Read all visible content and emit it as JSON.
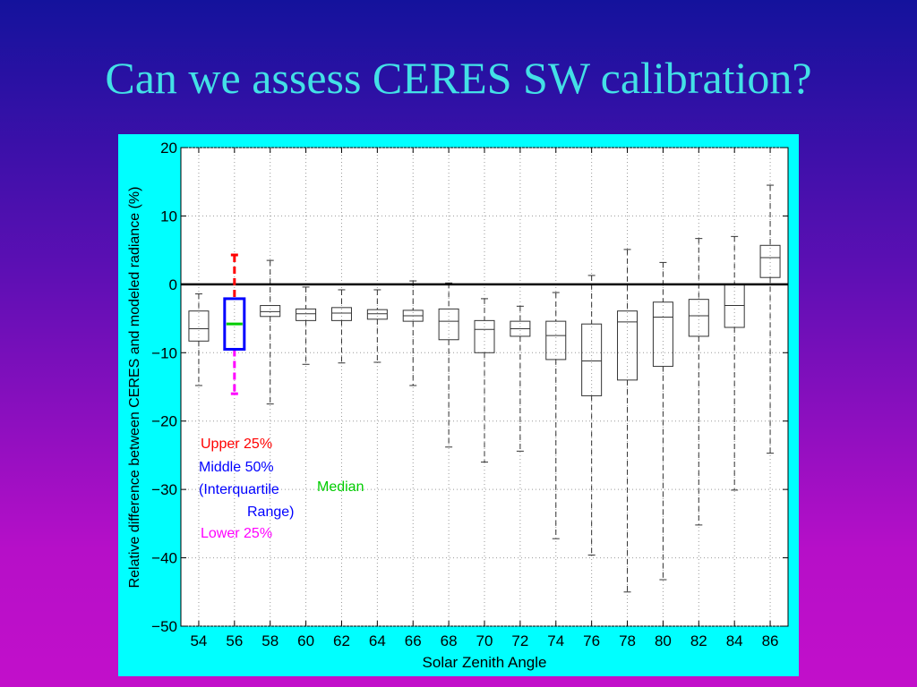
{
  "slide": {
    "title": "Can we assess CERES SW calibration?"
  },
  "colors": {
    "panel": "#00ffff",
    "plot_background": "#ffffff",
    "upper": "#ff0000",
    "middle": "#0000ff",
    "median": "#00cc00",
    "lower": "#ff00ff",
    "box": "#333333"
  },
  "chart_data": {
    "type": "box",
    "xlabel": "Solar Zenith Angle",
    "ylabel": "Relative difference between CERES and modeled radiance (%)",
    "ylim": [
      -50,
      20
    ],
    "xlim": [
      53,
      87
    ],
    "yticks": [
      20,
      10,
      0,
      -10,
      -20,
      -30,
      -40,
      -50
    ],
    "ytick_labels": [
      "20",
      "10",
      "0",
      "−10",
      "−20",
      "−30",
      "−40",
      "−50"
    ],
    "xticks": [
      54,
      56,
      58,
      60,
      62,
      64,
      66,
      68,
      70,
      72,
      74,
      76,
      78,
      80,
      82,
      84,
      86
    ],
    "grid": true,
    "zero_line": 0,
    "boxes": [
      {
        "x": 54,
        "whisker_low": -14.8,
        "q1": -8.3,
        "median": -6.5,
        "q3": -3.9,
        "whisker_high": -1.4
      },
      {
        "x": 58,
        "whisker_low": -17.5,
        "q1": -4.7,
        "median": -4.0,
        "q3": -3.1,
        "whisker_high": 3.5
      },
      {
        "x": 60,
        "whisker_low": -11.7,
        "q1": -5.3,
        "median": -4.3,
        "q3": -3.6,
        "whisker_high": -0.4
      },
      {
        "x": 62,
        "whisker_low": -11.5,
        "q1": -5.3,
        "median": -4.2,
        "q3": -3.4,
        "whisker_high": -0.8
      },
      {
        "x": 64,
        "whisker_low": -11.4,
        "q1": -5.1,
        "median": -4.3,
        "q3": -3.7,
        "whisker_high": -0.8
      },
      {
        "x": 66,
        "whisker_low": -14.8,
        "q1": -5.4,
        "median": -4.6,
        "q3": -3.8,
        "whisker_high": 0.5
      },
      {
        "x": 68,
        "whisker_low": -23.8,
        "q1": -8.1,
        "median": -5.4,
        "q3": -3.6,
        "whisker_high": 0.2
      },
      {
        "x": 70,
        "whisker_low": -26.0,
        "q1": -10.0,
        "median": -6.6,
        "q3": -5.3,
        "whisker_high": -2.1
      },
      {
        "x": 72,
        "whisker_low": -24.4,
        "q1": -7.6,
        "median": -6.5,
        "q3": -5.4,
        "whisker_high": -3.2
      },
      {
        "x": 74,
        "whisker_low": -37.2,
        "q1": -11.0,
        "median": -7.5,
        "q3": -5.4,
        "whisker_high": -1.2
      },
      {
        "x": 76,
        "whisker_low": -39.6,
        "q1": -16.3,
        "median": -11.2,
        "q3": -5.8,
        "whisker_high": 1.3
      },
      {
        "x": 78,
        "whisker_low": -45.0,
        "q1": -14.0,
        "median": -5.5,
        "q3": -3.9,
        "whisker_high": 5.1
      },
      {
        "x": 80,
        "whisker_low": -43.2,
        "q1": -12.0,
        "median": -4.8,
        "q3": -2.6,
        "whisker_high": 3.2
      },
      {
        "x": 82,
        "whisker_low": -35.2,
        "q1": -7.6,
        "median": -4.6,
        "q3": -2.2,
        "whisker_high": 6.7
      },
      {
        "x": 84,
        "whisker_low": -30.1,
        "q1": -6.3,
        "median": -3.1,
        "q3": 0.0,
        "whisker_high": 7.0
      },
      {
        "x": 86,
        "whisker_low": -24.7,
        "q1": 1.0,
        "median": 3.9,
        "q3": 5.7,
        "whisker_high": 14.5
      }
    ],
    "legend_example": {
      "x": 56,
      "whisker_low": -16.0,
      "q1": -9.5,
      "median": -5.8,
      "q3": -2.1,
      "whisker_high": 4.3
    },
    "annotations": {
      "upper": "Upper 25%",
      "middle_line1": "Middle 50%",
      "middle_line2": "(Interquartile",
      "middle_line3": "Range)",
      "median": "Median",
      "lower": "Lower 25%"
    }
  }
}
